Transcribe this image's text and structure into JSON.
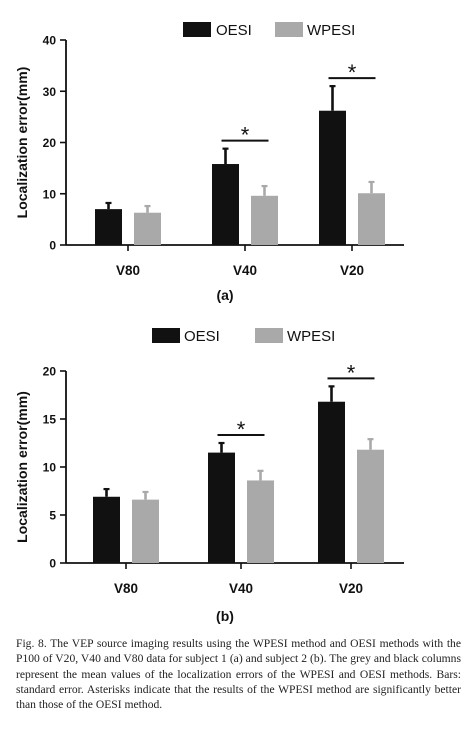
{
  "chart_data": [
    {
      "type": "bar",
      "panel_label": "(a)",
      "categories": [
        "V80",
        "V40",
        "V20"
      ],
      "series": [
        {
          "name": "OESI",
          "color": "#111111",
          "values": [
            7.0,
            15.8,
            26.2
          ],
          "errors": [
            1.2,
            3.0,
            4.8
          ]
        },
        {
          "name": "WPESI",
          "color": "#a9a9a9",
          "values": [
            6.3,
            9.6,
            10.1
          ],
          "errors": [
            1.3,
            1.9,
            2.2
          ]
        }
      ],
      "ylabel": "Localization error(mm)",
      "ylim": [
        0,
        40
      ],
      "yticks": [
        0,
        10,
        20,
        30,
        40
      ],
      "significance": [
        {
          "category": "V40",
          "marker": "*"
        },
        {
          "category": "V20",
          "marker": "*"
        }
      ],
      "legend": "top-center",
      "grid": false
    },
    {
      "type": "bar",
      "panel_label": "(b)",
      "categories": [
        "V80",
        "V40",
        "V20"
      ],
      "series": [
        {
          "name": "OESI",
          "color": "#111111",
          "values": [
            6.9,
            11.5,
            16.8
          ],
          "errors": [
            0.8,
            1.0,
            1.6
          ]
        },
        {
          "name": "WPESI",
          "color": "#a9a9a9",
          "values": [
            6.6,
            8.6,
            11.8
          ],
          "errors": [
            0.8,
            1.0,
            1.1
          ]
        }
      ],
      "ylabel": "Localization error(mm)",
      "ylim": [
        0,
        20
      ],
      "yticks": [
        0,
        5,
        10,
        15,
        20
      ],
      "significance": [
        {
          "category": "V40",
          "marker": "*"
        },
        {
          "category": "V20",
          "marker": "*"
        }
      ],
      "legend": "top-center",
      "grid": false
    }
  ],
  "caption": "Fig. 8. The VEP source imaging results using the WPESI method and OESI methods with the P100 of V20, V40 and V80 data for subject 1 (a) and subject 2 (b). The grey and black columns represent the mean values of the localization errors of the WPESI and OESI methods. Bars: standard error. Asterisks indicate that the results of the WPESI method are significantly better than those of the OESI method."
}
